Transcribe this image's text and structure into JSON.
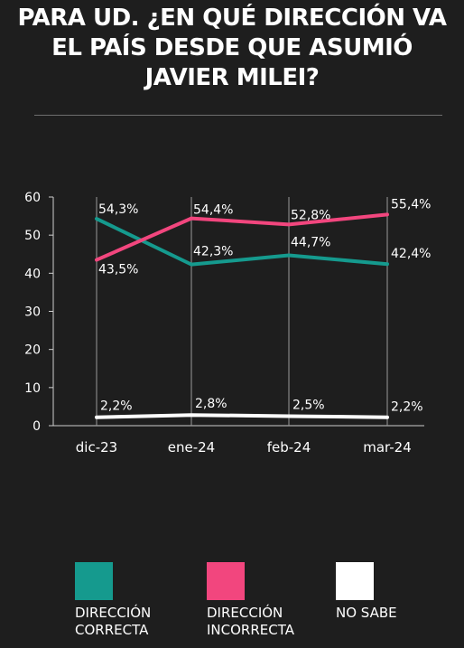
{
  "title_lines": [
    "PARA UD. ¿EN QUÉ DIRECCIÓN VA",
    "EL PAÍS DESDE QUE ASUMIÓ",
    "JAVIER MILEI?"
  ],
  "colors": {
    "correcta": "#159a8e",
    "incorrecta": "#f2467e",
    "no_sabe": "#ffffff",
    "background": "#1e1e1e"
  },
  "chart_data": {
    "type": "line",
    "title": "PARA UD. ¿EN QUÉ DIRECCIÓN VA EL PAÍS DESDE QUE ASUMIÓ JAVIER MILEI?",
    "categories": [
      "dic-23",
      "ene-24",
      "feb-24",
      "mar-24"
    ],
    "ylim": [
      0,
      60
    ],
    "yticks": [
      0,
      10,
      20,
      30,
      40,
      50,
      60
    ],
    "grid": "vertical lines at categories",
    "legend_position": "bottom",
    "series": [
      {
        "name": "DIRECCIÓN\nCORRECTA",
        "values": [
          54.3,
          42.3,
          44.7,
          42.4
        ],
        "labels": [
          "54,3%",
          "42,3%",
          "44,7%",
          "42,4%"
        ],
        "color": "#159a8e"
      },
      {
        "name": "DIRECCIÓN\nINCORRECTA",
        "values": [
          43.5,
          54.4,
          52.8,
          55.4
        ],
        "labels": [
          "43,5%",
          "54,4%",
          "52,8%",
          "55,4%"
        ],
        "color": "#f2467e"
      },
      {
        "name": "NO SABE",
        "values": [
          2.2,
          2.8,
          2.5,
          2.2
        ],
        "labels": [
          "2,2%",
          "2,8%",
          "2,5%",
          "2,2%"
        ],
        "color": "#ffffff"
      }
    ]
  }
}
